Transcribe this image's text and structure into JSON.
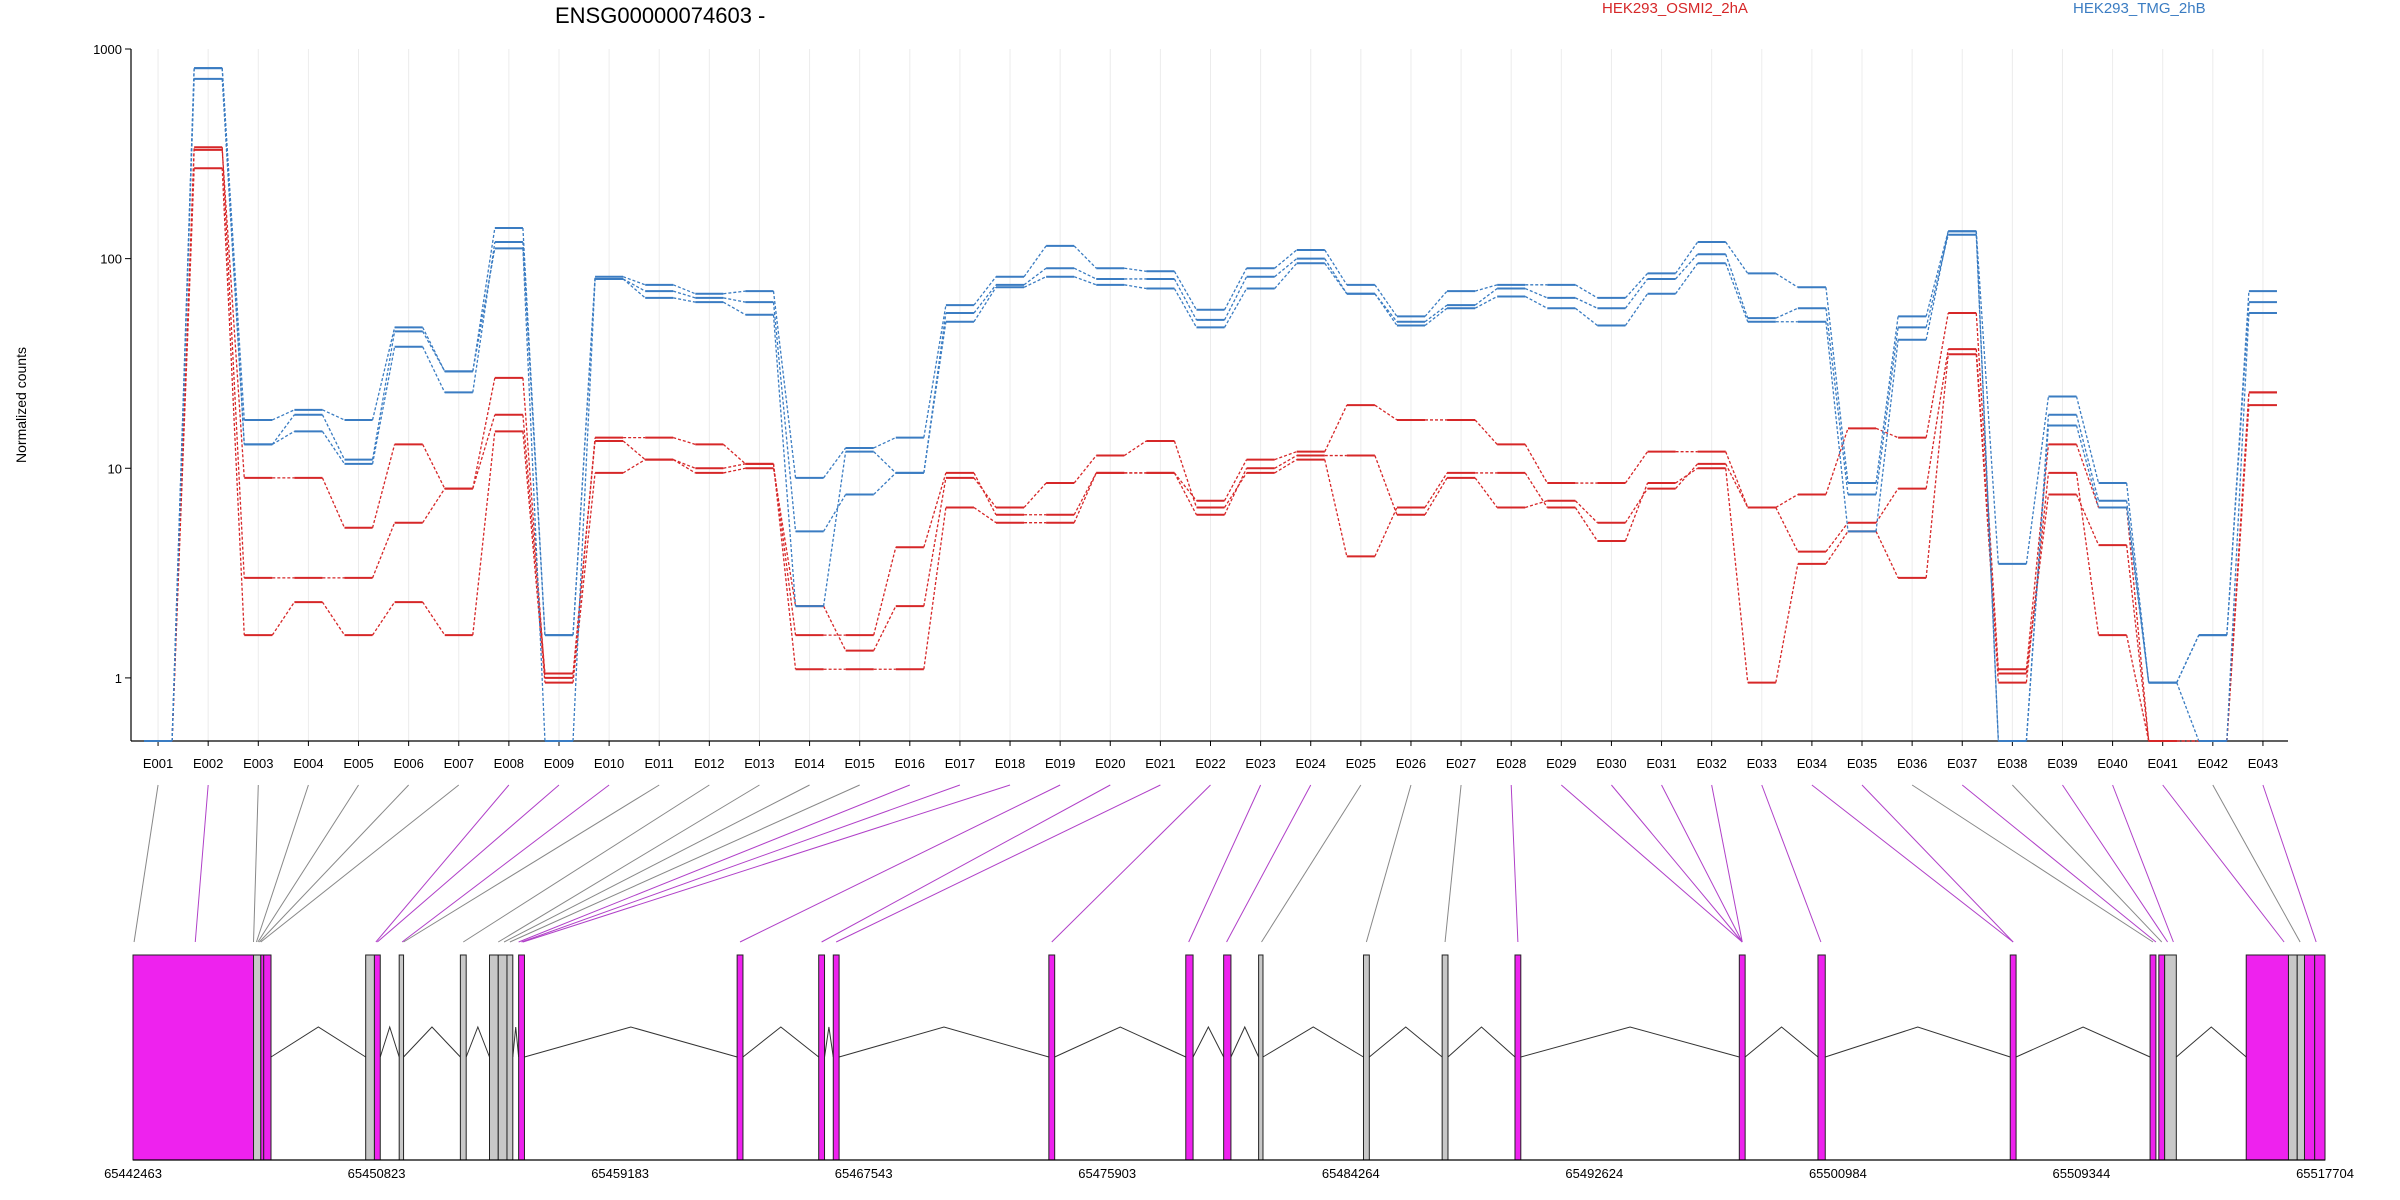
{
  "chart_data": {
    "type": "line",
    "title": "ENSG00000074603 -",
    "ylabel": "Normalized counts",
    "yscale": "log",
    "yticks": [
      "1000",
      "100",
      "10",
      "1"
    ],
    "ytick_values": [
      1000,
      100,
      10,
      1
    ],
    "ylim": [
      0.5,
      1000
    ],
    "grid": "vertical",
    "legend_placement": "top",
    "colors": {
      "HEK293_OSMI2_2hA": "#d62728",
      "HEK293_TMG_2hB": "#3a7cc2",
      "exon_highlight": "#ee22ee",
      "exon_plain": "#c8c8c8"
    },
    "categories": [
      "E001",
      "E002",
      "E003",
      "E004",
      "E005",
      "E006",
      "E007",
      "E008",
      "E009",
      "E010",
      "E011",
      "E012",
      "E013",
      "E014",
      "E015",
      "E016",
      "E017",
      "E018",
      "E019",
      "E020",
      "E021",
      "E022",
      "E023",
      "E024",
      "E025",
      "E026",
      "E027",
      "E028",
      "E029",
      "E030",
      "E031",
      "E032",
      "E033",
      "E034",
      "E035",
      "E036",
      "E037",
      "E038",
      "E039",
      "E040",
      "E041",
      "E042",
      "E043"
    ],
    "legend": [
      "HEK293_OSMI2_2hA",
      "HEK293_TMG_2hB"
    ],
    "series": [
      {
        "group": "HEK293_OSMI2_2hA",
        "values": [
          0.5,
          340,
          3,
          3,
          3,
          5.5,
          8,
          27,
          1,
          14,
          14,
          13,
          10.5,
          1.6,
          1.6,
          4.2,
          9.5,
          6,
          6,
          9.5,
          9.5,
          7,
          11,
          12,
          20,
          17,
          17,
          13,
          8.5,
          8.5,
          12,
          12,
          6.5,
          7.5,
          15.5,
          14,
          55,
          1.1,
          13,
          6.5,
          0.5,
          0.5,
          23
        ]
      },
      {
        "group": "HEK293_OSMI2_2hA",
        "values": [
          0.5,
          330,
          9,
          9,
          5.2,
          13,
          8,
          18,
          1.05,
          13.5,
          11,
          10,
          10.5,
          1.1,
          1.1,
          1.1,
          6.5,
          5.5,
          5.5,
          9.5,
          9.5,
          6,
          10,
          11.5,
          11.5,
          6,
          9,
          6.5,
          7,
          5.5,
          8,
          10.5,
          6.5,
          4,
          5.5,
          8,
          37,
          1.05,
          7.5,
          4.3,
          0.5,
          0.5,
          23
        ]
      },
      {
        "group": "HEK293_OSMI2_2hA",
        "values": [
          0.5,
          270,
          1.6,
          2.3,
          1.6,
          2.3,
          1.6,
          15,
          0.95,
          9.5,
          11,
          9.5,
          10,
          2.2,
          1.35,
          2.2,
          9,
          6.5,
          8.5,
          11.5,
          13.5,
          6.5,
          9.5,
          11,
          3.8,
          6.5,
          9.5,
          9.5,
          6.5,
          4.5,
          8.5,
          10,
          0.95,
          3.5,
          5,
          3,
          35,
          0.95,
          9.5,
          1.6,
          0.5,
          0.5,
          20
        ]
      },
      {
        "group": "HEK293_TMG_2hB",
        "values": [
          0.5,
          810,
          17,
          19,
          17,
          47,
          29,
          140,
          1.6,
          82,
          75,
          68,
          70,
          9,
          12.5,
          14,
          60,
          82,
          115,
          90,
          87,
          57,
          90,
          110,
          75,
          53,
          70,
          75,
          75,
          65,
          85,
          120,
          85,
          73,
          8.5,
          53,
          135,
          3.5,
          22,
          8.5,
          0.95,
          1.6,
          70
        ]
      },
      {
        "group": "HEK293_TMG_2hB",
        "values": [
          0.5,
          720,
          13,
          15,
          10.5,
          38,
          23,
          120,
          1.6,
          80,
          70,
          65,
          62,
          5,
          7.5,
          9.5,
          55,
          75,
          90,
          80,
          80,
          51,
          82,
          100,
          68,
          50,
          60,
          72,
          65,
          58,
          80,
          105,
          52,
          58,
          7.5,
          47,
          130,
          0.5,
          18,
          7,
          0.95,
          1.6,
          62
        ]
      },
      {
        "group": "HEK293_TMG_2hB",
        "values": [
          0.5,
          810,
          13,
          18,
          11,
          45,
          29,
          112,
          0.5,
          80,
          65,
          62,
          54,
          2.2,
          12,
          9.5,
          50,
          73,
          82,
          75,
          72,
          47,
          72,
          95,
          68,
          48,
          58,
          66,
          58,
          48,
          68,
          95,
          50,
          50,
          5,
          41,
          135,
          0.5,
          16,
          6.5,
          0.95,
          0.5,
          55
        ]
      }
    ],
    "genomic_axis": {
      "labels": [
        "65442463",
        "65450823",
        "65459183",
        "65467543",
        "65475903",
        "65484264",
        "65492624",
        "65500984",
        "65509344",
        "65517704"
      ],
      "start": 65442463,
      "end": 65517704
    },
    "exons": [
      {
        "start": 65442463,
        "end": 65446600,
        "color": "highlight"
      },
      {
        "start": 65446600,
        "end": 65446850,
        "color": "plain"
      },
      {
        "start": 65446850,
        "end": 65446950,
        "color": "highlight"
      },
      {
        "start": 65446950,
        "end": 65447200,
        "color": "highlight"
      },
      {
        "start": 65450450,
        "end": 65450750,
        "color": "plain"
      },
      {
        "start": 65450750,
        "end": 65450950,
        "color": "highlight"
      },
      {
        "start": 65451600,
        "end": 65451750,
        "color": "plain"
      },
      {
        "start": 65453700,
        "end": 65453900,
        "color": "plain"
      },
      {
        "start": 65454700,
        "end": 65455000,
        "color": "plain"
      },
      {
        "start": 65455000,
        "end": 65455300,
        "color": "plain"
      },
      {
        "start": 65455300,
        "end": 65455500,
        "color": "plain"
      },
      {
        "start": 65455700,
        "end": 65455900,
        "color": "highlight"
      },
      {
        "start": 65463200,
        "end": 65463400,
        "color": "highlight"
      },
      {
        "start": 65466000,
        "end": 65466200,
        "color": "highlight"
      },
      {
        "start": 65466500,
        "end": 65466700,
        "color": "highlight"
      },
      {
        "start": 65473900,
        "end": 65474100,
        "color": "highlight"
      },
      {
        "start": 65478600,
        "end": 65478850,
        "color": "highlight"
      },
      {
        "start": 65479900,
        "end": 65480150,
        "color": "highlight"
      },
      {
        "start": 65481100,
        "end": 65481250,
        "color": "plain"
      },
      {
        "start": 65484700,
        "end": 65484900,
        "color": "plain"
      },
      {
        "start": 65487400,
        "end": 65487600,
        "color": "plain"
      },
      {
        "start": 65489900,
        "end": 65490100,
        "color": "highlight"
      },
      {
        "start": 65497600,
        "end": 65497800,
        "color": "highlight"
      },
      {
        "start": 65500300,
        "end": 65500550,
        "color": "highlight"
      },
      {
        "start": 65506900,
        "end": 65507100,
        "color": "highlight"
      },
      {
        "start": 65511700,
        "end": 65511900,
        "color": "highlight"
      },
      {
        "start": 65512000,
        "end": 65512200,
        "color": "highlight"
      },
      {
        "start": 65512200,
        "end": 65512600,
        "color": "plain"
      },
      {
        "start": 65515000,
        "end": 65516450,
        "color": "highlight"
      },
      {
        "start": 65516450,
        "end": 65516750,
        "color": "plain"
      },
      {
        "start": 65516750,
        "end": 65517000,
        "color": "plain"
      },
      {
        "start": 65517000,
        "end": 65517350,
        "color": "highlight"
      },
      {
        "start": 65517350,
        "end": 65517704,
        "color": "highlight"
      }
    ],
    "exon_links": [
      {
        "bin": "E001",
        "pos": 65442500,
        "color": "plain"
      },
      {
        "bin": "E002",
        "pos": 65444600,
        "color": "highlight"
      },
      {
        "bin": "E003",
        "pos": 65446600,
        "color": "plain"
      },
      {
        "bin": "E004",
        "pos": 65446700,
        "color": "plain"
      },
      {
        "bin": "E005",
        "pos": 65446750,
        "color": "plain"
      },
      {
        "bin": "E006",
        "pos": 65446800,
        "color": "plain"
      },
      {
        "bin": "E007",
        "pos": 65446850,
        "color": "plain"
      },
      {
        "bin": "E008",
        "pos": 65450800,
        "color": "highlight"
      },
      {
        "bin": "E009",
        "pos": 65450850,
        "color": "highlight"
      },
      {
        "bin": "E010",
        "pos": 65451700,
        "color": "highlight"
      },
      {
        "bin": "E011",
        "pos": 65451750,
        "color": "plain"
      },
      {
        "bin": "E012",
        "pos": 65453800,
        "color": "plain"
      },
      {
        "bin": "E013",
        "pos": 65455000,
        "color": "plain"
      },
      {
        "bin": "E014",
        "pos": 65455200,
        "color": "plain"
      },
      {
        "bin": "E015",
        "pos": 65455400,
        "color": "plain"
      },
      {
        "bin": "E016",
        "pos": 65455700,
        "color": "highlight"
      },
      {
        "bin": "E017",
        "pos": 65455800,
        "color": "highlight"
      },
      {
        "bin": "E018",
        "pos": 65455850,
        "color": "highlight"
      },
      {
        "bin": "E019",
        "pos": 65463300,
        "color": "highlight"
      },
      {
        "bin": "E020",
        "pos": 65466100,
        "color": "highlight"
      },
      {
        "bin": "E021",
        "pos": 65466600,
        "color": "highlight"
      },
      {
        "bin": "E022",
        "pos": 65474000,
        "color": "highlight"
      },
      {
        "bin": "E023",
        "pos": 65478700,
        "color": "highlight"
      },
      {
        "bin": "E024",
        "pos": 65480000,
        "color": "highlight"
      },
      {
        "bin": "E025",
        "pos": 65481200,
        "color": "plain"
      },
      {
        "bin": "E026",
        "pos": 65484800,
        "color": "plain"
      },
      {
        "bin": "E027",
        "pos": 65487500,
        "color": "plain"
      },
      {
        "bin": "E028",
        "pos": 65490000,
        "color": "highlight"
      },
      {
        "bin": "E029",
        "pos": 65497700,
        "color": "highlight"
      },
      {
        "bin": "E030",
        "pos": 65497700,
        "color": "highlight"
      },
      {
        "bin": "E031",
        "pos": 65497700,
        "color": "highlight"
      },
      {
        "bin": "E032",
        "pos": 65497700,
        "color": "highlight"
      },
      {
        "bin": "E033",
        "pos": 65500400,
        "color": "highlight"
      },
      {
        "bin": "E034",
        "pos": 65507000,
        "color": "highlight"
      },
      {
        "bin": "E035",
        "pos": 65507000,
        "color": "highlight"
      },
      {
        "bin": "E036",
        "pos": 65511800,
        "color": "plain"
      },
      {
        "bin": "E037",
        "pos": 65511900,
        "color": "highlight"
      },
      {
        "bin": "E038",
        "pos": 65512100,
        "color": "plain"
      },
      {
        "bin": "E039",
        "pos": 65512300,
        "color": "highlight"
      },
      {
        "bin": "E040",
        "pos": 65512500,
        "color": "highlight"
      },
      {
        "bin": "E041",
        "pos": 65516300,
        "color": "highlight"
      },
      {
        "bin": "E042",
        "pos": 65516850,
        "color": "plain"
      },
      {
        "bin": "E043",
        "pos": 65517400,
        "color": "highlight"
      }
    ]
  }
}
